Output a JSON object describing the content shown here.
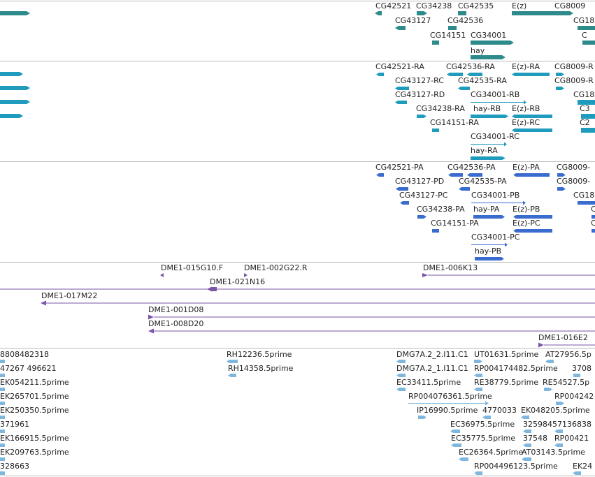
{
  "colors": {
    "gene": "#2e8b8b",
    "transcript": "#1e9bbd",
    "protein": "#3a6ccf",
    "clone": "#7a55a8",
    "est": "#7fb6de",
    "separator": "#bbbbbb",
    "text": "#222222"
  },
  "tracks": [
    {
      "name": "genes",
      "color_key": "gene",
      "labels": [
        {
          "text": "CG42521"
        },
        {
          "text": "CG34238"
        },
        {
          "text": "CG42535"
        },
        {
          "text": "E(z)"
        },
        {
          "text": "CG8009"
        },
        {
          "text": "CG43127"
        },
        {
          "text": "CG42536"
        },
        {
          "text": "CG18"
        },
        {
          "text": "CG14151"
        },
        {
          "text": "CG34001"
        },
        {
          "text": "C"
        },
        {
          "text": "hay"
        }
      ]
    },
    {
      "name": "transcripts",
      "color_key": "transcript",
      "labels": [
        {
          "text": "CG42521-RA"
        },
        {
          "text": "CG42536-RA"
        },
        {
          "text": "E(z)-RA"
        },
        {
          "text": "CG8009-R"
        },
        {
          "text": "CG43127-RC"
        },
        {
          "text": "CG42535-RA"
        },
        {
          "text": "CG8009-R"
        },
        {
          "text": "CG43127-RD"
        },
        {
          "text": "CG34001-RB"
        },
        {
          "text": "CG18"
        },
        {
          "text": "CG34238-RA"
        },
        {
          "text": "hay-RB"
        },
        {
          "text": "E(z)-RB"
        },
        {
          "text": "C3"
        },
        {
          "text": "CG14151-RA"
        },
        {
          "text": "E(z)-RC"
        },
        {
          "text": "C2"
        },
        {
          "text": "CG34001-RC"
        },
        {
          "text": "hay-RA"
        }
      ]
    },
    {
      "name": "proteins",
      "color_key": "protein",
      "labels": [
        {
          "text": "CG42521-PA"
        },
        {
          "text": "CG42536-PA"
        },
        {
          "text": "E(z)-PA"
        },
        {
          "text": "CG8009-"
        },
        {
          "text": "CG43127-PD"
        },
        {
          "text": "CG42535-PA"
        },
        {
          "text": "CG8009-"
        },
        {
          "text": "CG43127-PC"
        },
        {
          "text": "CG34001-PB"
        },
        {
          "text": "CG18"
        },
        {
          "text": "CG34238-PA"
        },
        {
          "text": "hay-PA"
        },
        {
          "text": "E(z)-PB"
        },
        {
          "text": "C"
        },
        {
          "text": "CG14151-PA"
        },
        {
          "text": "E(z)-PC"
        },
        {
          "text": "C"
        },
        {
          "text": "CG34001-PC"
        },
        {
          "text": "hay-PB"
        }
      ]
    },
    {
      "name": "clones",
      "color_key": "clone",
      "labels": [
        {
          "text": "DME1-015G10.F"
        },
        {
          "text": "DME1-002G22.R"
        },
        {
          "text": "DME1-006K13"
        },
        {
          "text": "DME1-021N16"
        },
        {
          "text": "DME1-017M22"
        },
        {
          "text": "DME1-001D08"
        },
        {
          "text": "DME1-008D20"
        },
        {
          "text": "DME1-016E2"
        }
      ]
    },
    {
      "name": "ests",
      "color_key": "est",
      "labels": [
        {
          "text": "8808482318"
        },
        {
          "text": "RH12236.5prime"
        },
        {
          "text": "DMG7A.2_2.I11.C1"
        },
        {
          "text": "UT01631.5prime"
        },
        {
          "text": "AT27956.5p"
        },
        {
          "text": "47267 496621"
        },
        {
          "text": "RH14358.5prime"
        },
        {
          "text": "DMG7A.2_1.I11.C1"
        },
        {
          "text": "RP004174482.5prime"
        },
        {
          "text": "3708"
        },
        {
          "text": "EK054211.5prime"
        },
        {
          "text": "EC33411.5prime"
        },
        {
          "text": "RE38779.5prime"
        },
        {
          "text": "RE54527.5p"
        },
        {
          "text": "EK265701.5prime"
        },
        {
          "text": "RP004076361.5prime"
        },
        {
          "text": "RP004242"
        },
        {
          "text": "EK250350.5prime"
        },
        {
          "text": "IP16990.5prime"
        },
        {
          "text": "4770033"
        },
        {
          "text": "EK048205.5prime"
        },
        {
          "text": "371961"
        },
        {
          "text": "EC36975.5prime"
        },
        {
          "text": "32598457136838"
        },
        {
          "text": "EK166915.5prime"
        },
        {
          "text": "EC35775.5prime"
        },
        {
          "text": "37548"
        },
        {
          "text": "RP00421"
        },
        {
          "text": "EK209763.5prime"
        },
        {
          "text": "EC26364.5prime"
        },
        {
          "text": "AT03143.5prime"
        },
        {
          "text": "328663"
        },
        {
          "text": "RP004496123.5prime"
        },
        {
          "text": "EK24"
        }
      ]
    }
  ]
}
